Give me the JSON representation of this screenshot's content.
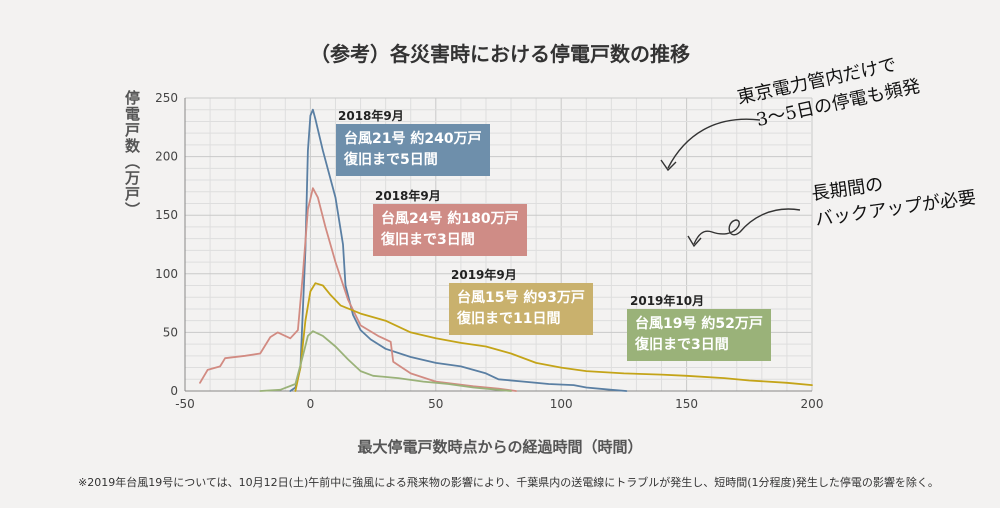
{
  "title": "（参考）各災害時における停電戸数の推移",
  "y_axis_label": "停電戸数（万戸）",
  "x_axis_label": "最大停電戸数時点からの経過時間（時間）",
  "footnote": "※2019年台風19号については、10月12日(土)午前中に強風による飛来物の影響により、千葉県内の送電線にトラブルが発生し、短時間(1分程度)発生した停電の影響を除く。",
  "annotations": {
    "note1": {
      "line1": "東京電力管内だけで",
      "line2": "3〜5日の停電も頻発"
    },
    "note2": {
      "line1": "長期間の",
      "line2": "バックアップが必要"
    }
  },
  "boxes": [
    {
      "date": "2018年9月",
      "line1": "台風21号 約240万戸",
      "line2": "復旧まで5日間",
      "color": "#6e8fab"
    },
    {
      "date": "2018年9月",
      "line1": "台風24号 約180万戸",
      "line2": "復旧まで3日間",
      "color": "#cf8c86"
    },
    {
      "date": "2019年9月",
      "line1": "台風15号 約93万戸",
      "line2": "復旧まで11日間",
      "color": "#c9b16d"
    },
    {
      "date": "2019年10月",
      "line1": "台風19号 約52万戸",
      "line2": "復旧まで3日間",
      "color": "#9ab279"
    }
  ],
  "chart_data": {
    "type": "line",
    "xlim": [
      -50,
      200
    ],
    "ylim": [
      0,
      250
    ],
    "x_ticks": [
      -50,
      0,
      50,
      100,
      150,
      200
    ],
    "y_ticks": [
      0,
      50,
      100,
      150,
      200,
      250
    ],
    "grid": true,
    "series": [
      {
        "name": "台風21号",
        "color": "#5a7fa3",
        "points": [
          [
            -8,
            0
          ],
          [
            -6,
            3
          ],
          [
            -4,
            20
          ],
          [
            -2,
            120
          ],
          [
            -1,
            205
          ],
          [
            0,
            235
          ],
          [
            1,
            240
          ],
          [
            2,
            232
          ],
          [
            5,
            205
          ],
          [
            10,
            165
          ],
          [
            13,
            125
          ],
          [
            14,
            90
          ],
          [
            17,
            65
          ],
          [
            20,
            52
          ],
          [
            24,
            44
          ],
          [
            30,
            36
          ],
          [
            40,
            29
          ],
          [
            50,
            24
          ],
          [
            60,
            21
          ],
          [
            70,
            15
          ],
          [
            75,
            10
          ],
          [
            85,
            8
          ],
          [
            95,
            6
          ],
          [
            105,
            5
          ],
          [
            110,
            3
          ],
          [
            120,
            1
          ],
          [
            126,
            0
          ]
        ]
      },
      {
        "name": "台風24号",
        "color": "#d28b82",
        "points": [
          [
            -44,
            7
          ],
          [
            -41,
            18
          ],
          [
            -36,
            21
          ],
          [
            -34,
            28
          ],
          [
            -26,
            30
          ],
          [
            -20,
            32
          ],
          [
            -16,
            46
          ],
          [
            -13,
            50
          ],
          [
            -8,
            45
          ],
          [
            -5,
            52
          ],
          [
            -3,
            100
          ],
          [
            -1,
            155
          ],
          [
            1,
            173
          ],
          [
            3,
            165
          ],
          [
            6,
            140
          ],
          [
            10,
            110
          ],
          [
            15,
            78
          ],
          [
            20,
            56
          ],
          [
            27,
            47
          ],
          [
            32,
            42
          ],
          [
            33,
            25
          ],
          [
            40,
            15
          ],
          [
            50,
            8
          ],
          [
            65,
            4
          ],
          [
            75,
            2
          ],
          [
            82,
            0
          ]
        ]
      },
      {
        "name": "台風15号",
        "color": "#c4a418",
        "points": [
          [
            -6,
            0
          ],
          [
            -4,
            20
          ],
          [
            -2,
            60
          ],
          [
            0,
            85
          ],
          [
            2,
            92
          ],
          [
            5,
            90
          ],
          [
            8,
            82
          ],
          [
            12,
            73
          ],
          [
            20,
            66
          ],
          [
            30,
            60
          ],
          [
            40,
            50
          ],
          [
            50,
            45
          ],
          [
            60,
            41
          ],
          [
            70,
            38
          ],
          [
            80,
            32
          ],
          [
            90,
            24
          ],
          [
            100,
            20
          ],
          [
            110,
            17
          ],
          [
            125,
            15
          ],
          [
            140,
            14
          ],
          [
            150,
            13
          ],
          [
            165,
            11
          ],
          [
            175,
            9
          ],
          [
            190,
            7
          ],
          [
            200,
            5
          ]
        ]
      },
      {
        "name": "台風19号",
        "color": "#9ab279",
        "points": [
          [
            -20,
            0
          ],
          [
            -12,
            1
          ],
          [
            -6,
            6
          ],
          [
            -3,
            30
          ],
          [
            -1,
            47
          ],
          [
            1,
            51
          ],
          [
            5,
            47
          ],
          [
            10,
            38
          ],
          [
            15,
            27
          ],
          [
            20,
            17
          ],
          [
            25,
            13
          ],
          [
            35,
            11
          ],
          [
            45,
            8
          ],
          [
            55,
            6
          ],
          [
            65,
            3
          ],
          [
            75,
            1
          ],
          [
            80,
            0
          ]
        ]
      }
    ]
  }
}
